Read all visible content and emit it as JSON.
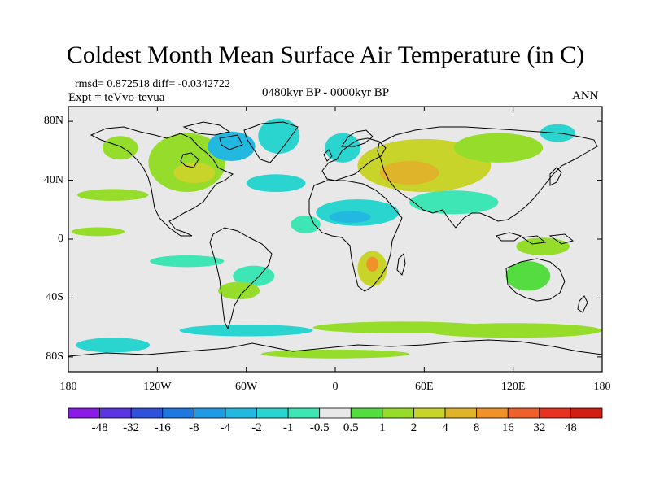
{
  "title": "Coldest Month Mean Surface Air Temperature (in C)",
  "stats_line": "rmsd= 0.872518 diff= -0.0342722",
  "experiment_line": "Expt = teVvo-tevua",
  "period_line": "0480kyr BP - 0000kyr BP",
  "season": "ANN",
  "map": {
    "projection": "cylindrical-equidistant",
    "lon_range": [
      -180,
      180
    ],
    "lat_range": [
      -90,
      90
    ],
    "lat_tick_labels": [
      "80N",
      "40N",
      "0",
      "40S",
      "80S"
    ],
    "lat_tick_values": [
      80,
      40,
      0,
      -40,
      -80
    ],
    "lon_tick_labels": [
      "180",
      "120W",
      "60W",
      "0",
      "60E",
      "120E",
      "180"
    ],
    "lon_tick_values": [
      -180,
      -120,
      -60,
      0,
      60,
      120,
      180
    ]
  },
  "colorbar": {
    "labels": [
      "-48",
      "-32",
      "-16",
      "-8",
      "-4",
      "-2",
      "-1",
      "-0.5",
      "0.5",
      "1",
      "2",
      "4",
      "8",
      "16",
      "32",
      "48"
    ],
    "colors": [
      "#8c1ae6",
      "#5a35e0",
      "#2e52d8",
      "#1f78e0",
      "#1f9be6",
      "#22b8e0",
      "#2ad4cf",
      "#3de6b4",
      "#e8e8e8",
      "#55dc40",
      "#95dd2a",
      "#c8d42a",
      "#e0b42a",
      "#f0912a",
      "#f0602a",
      "#e6321e",
      "#d01e14"
    ]
  },
  "chart_data": {
    "type": "heatmap",
    "title": "Coldest Month Mean Surface Air Temperature (in C)",
    "units": "C",
    "xlabel": "",
    "ylabel": "",
    "xlim": [
      -180,
      180
    ],
    "ylim": [
      -90,
      90
    ],
    "levels": [
      -48,
      -32,
      -16,
      -8,
      -4,
      -2,
      -1,
      -0.5,
      0.5,
      1,
      2,
      4,
      8,
      16,
      32,
      48
    ],
    "fields": [
      {
        "lon": -100,
        "lat": 52,
        "rx": 26,
        "ry": 20,
        "value": 1.5
      },
      {
        "lon": -95,
        "lat": 45,
        "rx": 14,
        "ry": 7,
        "value": 3
      },
      {
        "lon": -70,
        "lat": 63,
        "rx": 16,
        "ry": 10,
        "value": -3
      },
      {
        "lon": -38,
        "lat": 70,
        "rx": 14,
        "ry": 12,
        "value": -1.5
      },
      {
        "lon": -145,
        "lat": 62,
        "rx": 12,
        "ry": 8,
        "value": 1
      },
      {
        "lon": -150,
        "lat": 30,
        "rx": 24,
        "ry": 4,
        "value": 1
      },
      {
        "lon": -160,
        "lat": 5,
        "rx": 18,
        "ry": 3,
        "value": 1.5
      },
      {
        "lon": -100,
        "lat": -15,
        "rx": 25,
        "ry": 4,
        "value": -1
      },
      {
        "lon": -40,
        "lat": 38,
        "rx": 20,
        "ry": 6,
        "value": -1.5
      },
      {
        "lon": -55,
        "lat": -25,
        "rx": 14,
        "ry": 7,
        "value": -0.8
      },
      {
        "lon": -65,
        "lat": -35,
        "rx": 14,
        "ry": 6,
        "value": 1
      },
      {
        "lon": -20,
        "lat": 10,
        "rx": 10,
        "ry": 6,
        "value": -1
      },
      {
        "lon": 60,
        "lat": 50,
        "rx": 45,
        "ry": 18,
        "value": 2
      },
      {
        "lon": 50,
        "lat": 45,
        "rx": 20,
        "ry": 8,
        "value": 4
      },
      {
        "lon": 110,
        "lat": 62,
        "rx": 30,
        "ry": 10,
        "value": 1
      },
      {
        "lon": 5,
        "lat": 62,
        "rx": 12,
        "ry": 10,
        "value": -2
      },
      {
        "lon": 150,
        "lat": 72,
        "rx": 12,
        "ry": 6,
        "value": -1.5
      },
      {
        "lon": 15,
        "lat": 18,
        "rx": 28,
        "ry": 9,
        "value": -2
      },
      {
        "lon": 10,
        "lat": 15,
        "rx": 14,
        "ry": 4,
        "value": -4
      },
      {
        "lon": 80,
        "lat": 25,
        "rx": 30,
        "ry": 8,
        "value": -1
      },
      {
        "lon": 25,
        "lat": -20,
        "rx": 10,
        "ry": 12,
        "value": 2
      },
      {
        "lon": 25,
        "lat": -17,
        "rx": 4,
        "ry": 5,
        "value": 8
      },
      {
        "lon": 130,
        "lat": -25,
        "rx": 15,
        "ry": 10,
        "value": 0.8
      },
      {
        "lon": 140,
        "lat": -5,
        "rx": 18,
        "ry": 6,
        "value": 1
      },
      {
        "lon": 45,
        "lat": -60,
        "rx": 60,
        "ry": 4,
        "value": 1.5
      },
      {
        "lon": 120,
        "lat": -62,
        "rx": 60,
        "ry": 5,
        "value": 1
      },
      {
        "lon": -60,
        "lat": -62,
        "rx": 45,
        "ry": 4,
        "value": -1.5
      },
      {
        "lon": -150,
        "lat": -72,
        "rx": 25,
        "ry": 5,
        "value": -1.5
      },
      {
        "lon": 0,
        "lat": -78,
        "rx": 50,
        "ry": 3,
        "value": 1
      }
    ]
  }
}
